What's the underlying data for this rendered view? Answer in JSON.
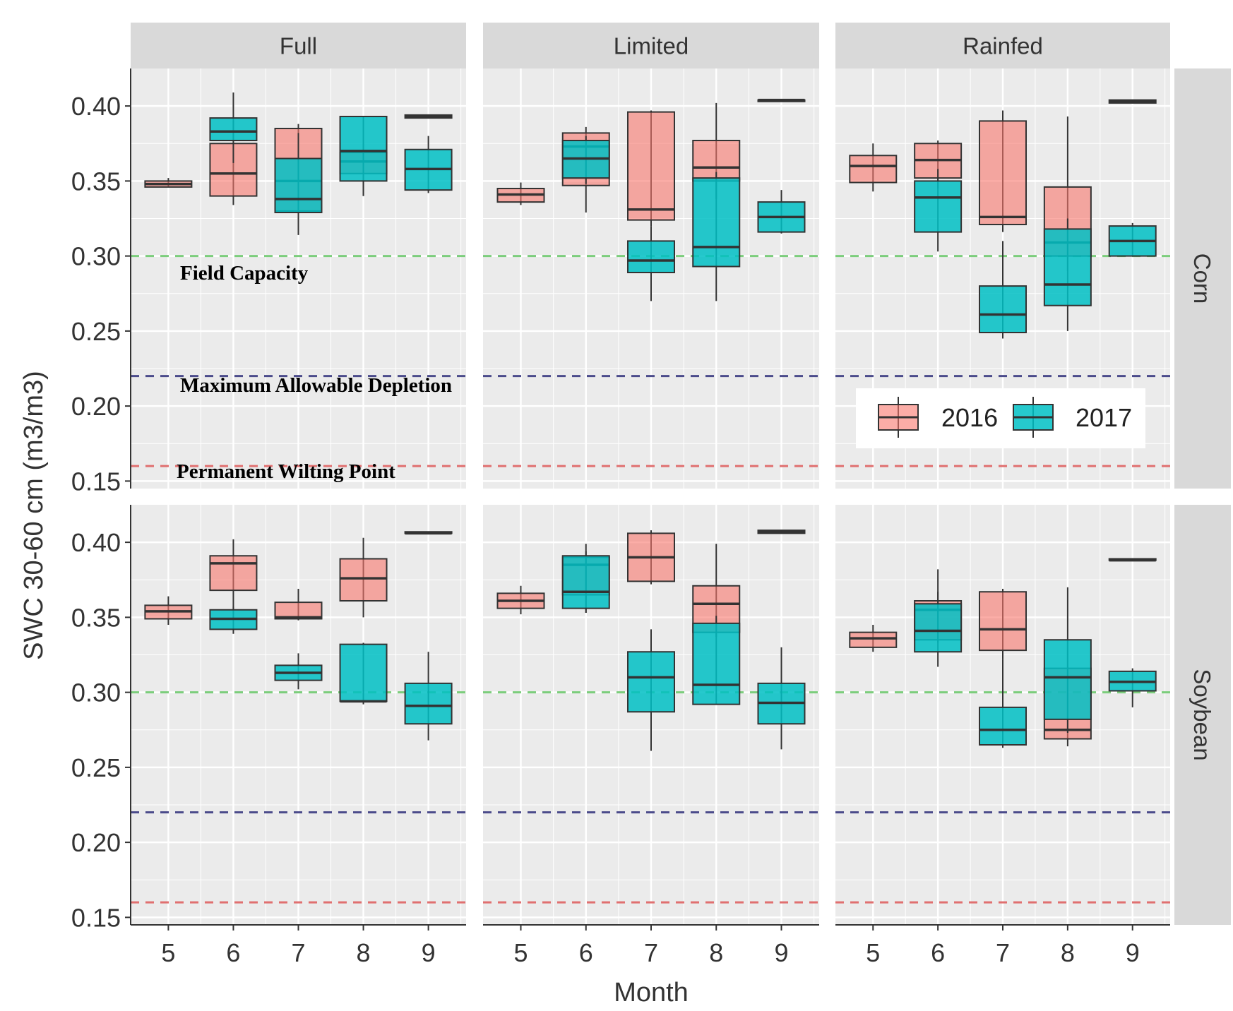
{
  "chart_data": {
    "type": "boxplot",
    "title": "",
    "xlabel": "Month",
    "ylabel": "SWC 30-60 cm (m3/m3)",
    "ylim": [
      0.145,
      0.425
    ],
    "yticks": [
      0.15,
      0.2,
      0.25,
      0.3,
      0.35,
      0.4
    ],
    "ytick_labels": [
      "0.15",
      "0.20",
      "0.25",
      "0.30",
      "0.35",
      "0.40"
    ],
    "xticks": [
      "5",
      "6",
      "7",
      "8",
      "9"
    ],
    "columns": [
      "Full",
      "Limited",
      "Rainfed"
    ],
    "rows": [
      "Corn",
      "Soybean"
    ],
    "legend": [
      {
        "name": "2016",
        "color": "#F8766D"
      },
      {
        "name": "2017",
        "color": "#00BFC4"
      }
    ],
    "reference_lines": [
      {
        "name": "Field Capacity",
        "value": 0.3,
        "color": "#7CCD7C"
      },
      {
        "name": "Maximum Allowable Depletion",
        "value": 0.22,
        "color": "#4B4B8B"
      },
      {
        "name": "Permanent Wilting Point",
        "value": 0.16,
        "color": "#E07070"
      }
    ],
    "annotations": [
      "Field Capacity",
      "Maximum Allowable Depletion",
      "Permanent Wilting Point"
    ],
    "panels": [
      {
        "row": "Corn",
        "col": "Full",
        "boxes": [
          {
            "month": 5,
            "year": "2016",
            "stats": [
              0.346,
              0.346,
              0.348,
              0.35,
              0.352
            ]
          },
          {
            "month": 6,
            "year": "2016",
            "stats": [
              0.334,
              0.34,
              0.355,
              0.375,
              0.39
            ]
          },
          {
            "month": 6,
            "year": "2017",
            "stats": [
              0.362,
              0.377,
              0.383,
              0.392,
              0.409
            ]
          },
          {
            "month": 7,
            "year": "2016",
            "stats": [
              0.325,
              0.33,
              0.35,
              0.385,
              0.388
            ]
          },
          {
            "month": 7,
            "year": "2017",
            "stats": [
              0.314,
              0.329,
              0.338,
              0.365,
              0.382
            ]
          },
          {
            "month": 8,
            "year": "2016",
            "stats": [
              0.34,
              0.355,
              0.363,
              0.369,
              0.375
            ]
          },
          {
            "month": 8,
            "year": "2017",
            "stats": [
              0.34,
              0.35,
              0.37,
              0.393,
              0.393
            ]
          },
          {
            "month": 9,
            "year": "2016",
            "stats": [
              0.392,
              0.392,
              0.393,
              0.394,
              0.394
            ]
          },
          {
            "month": 9,
            "year": "2017",
            "stats": [
              0.342,
              0.344,
              0.358,
              0.371,
              0.38
            ]
          }
        ]
      },
      {
        "row": "Corn",
        "col": "Limited",
        "boxes": [
          {
            "month": 5,
            "year": "2016",
            "stats": [
              0.334,
              0.336,
              0.341,
              0.345,
              0.349
            ]
          },
          {
            "month": 6,
            "year": "2016",
            "stats": [
              0.329,
              0.347,
              0.373,
              0.382,
              0.386
            ]
          },
          {
            "month": 6,
            "year": "2017",
            "stats": [
              0.348,
              0.352,
              0.365,
              0.377,
              0.38
            ]
          },
          {
            "month": 7,
            "year": "2016",
            "stats": [
              0.32,
              0.324,
              0.331,
              0.396,
              0.397
            ]
          },
          {
            "month": 7,
            "year": "2017",
            "stats": [
              0.27,
              0.289,
              0.297,
              0.31,
              0.32
            ]
          },
          {
            "month": 8,
            "year": "2016",
            "stats": [
              0.338,
              0.35,
              0.359,
              0.377,
              0.402
            ]
          },
          {
            "month": 8,
            "year": "2017",
            "stats": [
              0.27,
              0.293,
              0.306,
              0.352,
              0.356
            ]
          },
          {
            "month": 9,
            "year": "2016",
            "stats": [
              0.403,
              0.403,
              0.404,
              0.404,
              0.404
            ]
          },
          {
            "month": 9,
            "year": "2017",
            "stats": [
              0.315,
              0.316,
              0.326,
              0.336,
              0.344
            ]
          }
        ]
      },
      {
        "row": "Corn",
        "col": "Rainfed",
        "boxes": [
          {
            "month": 5,
            "year": "2016",
            "stats": [
              0.343,
              0.349,
              0.36,
              0.367,
              0.375
            ]
          },
          {
            "month": 6,
            "year": "2016",
            "stats": [
              0.345,
              0.352,
              0.364,
              0.375,
              0.377
            ]
          },
          {
            "month": 6,
            "year": "2017",
            "stats": [
              0.303,
              0.316,
              0.339,
              0.35,
              0.358
            ]
          },
          {
            "month": 7,
            "year": "2016",
            "stats": [
              0.316,
              0.321,
              0.326,
              0.39,
              0.397
            ]
          },
          {
            "month": 7,
            "year": "2017",
            "stats": [
              0.245,
              0.249,
              0.261,
              0.28,
              0.31
            ]
          },
          {
            "month": 8,
            "year": "2016",
            "stats": [
              0.29,
              0.3,
              0.309,
              0.346,
              0.393
            ]
          },
          {
            "month": 8,
            "year": "2017",
            "stats": [
              0.25,
              0.267,
              0.281,
              0.318,
              0.325
            ]
          },
          {
            "month": 9,
            "year": "2016",
            "stats": [
              0.402,
              0.402,
              0.403,
              0.404,
              0.404
            ]
          },
          {
            "month": 9,
            "year": "2017",
            "stats": [
              0.3,
              0.3,
              0.31,
              0.32,
              0.322
            ]
          }
        ]
      },
      {
        "row": "Soybean",
        "col": "Full",
        "boxes": [
          {
            "month": 5,
            "year": "2016",
            "stats": [
              0.345,
              0.349,
              0.354,
              0.358,
              0.364
            ]
          },
          {
            "month": 6,
            "year": "2016",
            "stats": [
              0.352,
              0.368,
              0.386,
              0.391,
              0.402
            ]
          },
          {
            "month": 6,
            "year": "2017",
            "stats": [
              0.339,
              0.342,
              0.349,
              0.355,
              0.357
            ]
          },
          {
            "month": 7,
            "year": "2016",
            "stats": [
              0.348,
              0.349,
              0.35,
              0.36,
              0.369
            ]
          },
          {
            "month": 7,
            "year": "2017",
            "stats": [
              0.302,
              0.308,
              0.313,
              0.318,
              0.326
            ]
          },
          {
            "month": 8,
            "year": "2016",
            "stats": [
              0.35,
              0.361,
              0.376,
              0.389,
              0.403
            ]
          },
          {
            "month": 8,
            "year": "2017",
            "stats": [
              0.292,
              0.294,
              0.294,
              0.332,
              0.333
            ]
          },
          {
            "month": 9,
            "year": "2016",
            "stats": [
              0.406,
              0.406,
              0.406,
              0.407,
              0.407
            ]
          },
          {
            "month": 9,
            "year": "2017",
            "stats": [
              0.268,
              0.279,
              0.291,
              0.306,
              0.327
            ]
          }
        ]
      },
      {
        "row": "Soybean",
        "col": "Limited",
        "boxes": [
          {
            "month": 5,
            "year": "2016",
            "stats": [
              0.352,
              0.356,
              0.361,
              0.366,
              0.371
            ]
          },
          {
            "month": 6,
            "year": "2016",
            "stats": [
              0.353,
              0.365,
              0.385,
              0.39,
              0.399
            ]
          },
          {
            "month": 6,
            "year": "2017",
            "stats": [
              0.353,
              0.356,
              0.367,
              0.391,
              0.394
            ]
          },
          {
            "month": 7,
            "year": "2016",
            "stats": [
              0.372,
              0.374,
              0.39,
              0.406,
              0.408
            ]
          },
          {
            "month": 7,
            "year": "2017",
            "stats": [
              0.261,
              0.287,
              0.31,
              0.327,
              0.342
            ]
          },
          {
            "month": 8,
            "year": "2016",
            "stats": [
              0.337,
              0.34,
              0.359,
              0.371,
              0.399
            ]
          },
          {
            "month": 8,
            "year": "2017",
            "stats": [
              0.292,
              0.292,
              0.305,
              0.346,
              0.351
            ]
          },
          {
            "month": 9,
            "year": "2016",
            "stats": [
              0.406,
              0.406,
              0.407,
              0.408,
              0.408
            ]
          },
          {
            "month": 9,
            "year": "2017",
            "stats": [
              0.262,
              0.279,
              0.293,
              0.306,
              0.33
            ]
          }
        ]
      },
      {
        "row": "Soybean",
        "col": "Rainfed",
        "boxes": [
          {
            "month": 5,
            "year": "2016",
            "stats": [
              0.327,
              0.33,
              0.336,
              0.34,
              0.345
            ]
          },
          {
            "month": 6,
            "year": "2016",
            "stats": [
              0.333,
              0.335,
              0.355,
              0.361,
              0.367
            ]
          },
          {
            "month": 6,
            "year": "2017",
            "stats": [
              0.317,
              0.327,
              0.341,
              0.359,
              0.382
            ]
          },
          {
            "month": 7,
            "year": "2016",
            "stats": [
              0.322,
              0.328,
              0.342,
              0.367,
              0.369
            ]
          },
          {
            "month": 7,
            "year": "2017",
            "stats": [
              0.263,
              0.265,
              0.275,
              0.29,
              0.322
            ]
          },
          {
            "month": 8,
            "year": "2016",
            "stats": [
              0.264,
              0.269,
              0.275,
              0.316,
              0.37
            ]
          },
          {
            "month": 8,
            "year": "2017",
            "stats": [
              0.273,
              0.282,
              0.31,
              0.335,
              0.335
            ]
          },
          {
            "month": 9,
            "year": "2016",
            "stats": [
              0.388,
              0.388,
              0.388,
              0.389,
              0.389
            ]
          },
          {
            "month": 9,
            "year": "2017",
            "stats": [
              0.29,
              0.301,
              0.307,
              0.314,
              0.316
            ]
          }
        ]
      }
    ]
  }
}
